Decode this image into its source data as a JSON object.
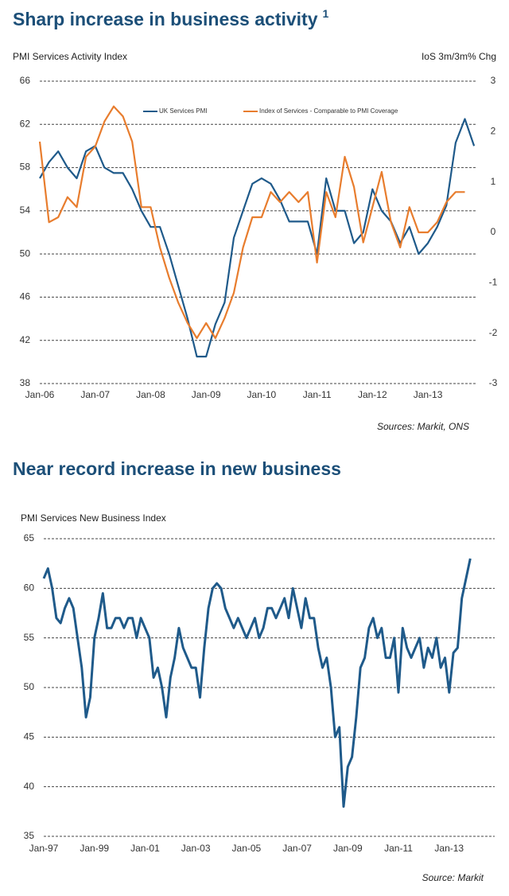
{
  "chart_data": [
    {
      "type": "line",
      "title": "Sharp increase in business activity",
      "title_superscript": "1",
      "ylabel": "PMI Services Activity Index",
      "y2label": "IoS 3m/3m% Chg",
      "source": "Sources: Markit, ONS",
      "categories": [
        "Jan-06",
        null,
        null,
        null,
        null,
        null,
        "Jan-07",
        null,
        null,
        null,
        null,
        null,
        "Jan-08",
        null,
        null,
        null,
        null,
        null,
        "Jan-09",
        null,
        null,
        null,
        null,
        null,
        "Jan-10",
        null,
        null,
        null,
        null,
        null,
        "Jan-11",
        null,
        null,
        null,
        null,
        null,
        "Jan-12",
        null,
        null,
        null,
        null,
        null,
        "Jan-13",
        null,
        null,
        null,
        null,
        null
      ],
      "ylim": [
        38,
        66
      ],
      "yticks": [
        38,
        42,
        46,
        50,
        54,
        58,
        62,
        66
      ],
      "y2lim": [
        -3,
        3
      ],
      "y2ticks": [
        -3,
        -2,
        -1,
        0,
        1,
        2,
        3
      ],
      "grid": true,
      "legend": "top",
      "series": [
        {
          "name": "UK Services PMI",
          "color": "#1f5a8a",
          "values": [
            57,
            58.5,
            59.5,
            58,
            57,
            59.5,
            60,
            58,
            57.5,
            57.5,
            56,
            54,
            52.5,
            52.5,
            50,
            47,
            44,
            40.5,
            40.5,
            43.5,
            45.5,
            51.5,
            54,
            56.5,
            57,
            56.5,
            55,
            53,
            53,
            53,
            50,
            57,
            54,
            54,
            51,
            52,
            56,
            54,
            53,
            51,
            52.5,
            50,
            51,
            52.5,
            54.5,
            60.3,
            62.5,
            60
          ]
        },
        {
          "name": "Index of Services - Comparable to PMI Coverage",
          "color": "#e87d2e",
          "axis": "y2",
          "values": [
            1.8,
            0.2,
            0.3,
            0.7,
            0.5,
            1.5,
            1.7,
            2.2,
            2.5,
            2.3,
            1.8,
            0.5,
            0.5,
            -0.3,
            -0.9,
            -1.4,
            -1.8,
            -2.1,
            -1.8,
            -2.1,
            -1.7,
            -1.2,
            -0.3,
            0.3,
            0.3,
            0.8,
            0.6,
            0.8,
            0.6,
            0.8,
            -0.6,
            0.8,
            0.3,
            1.5,
            0.9,
            -0.2,
            0.5,
            1.2,
            0.2,
            -0.3,
            0.5,
            0.0,
            0.0,
            0.2,
            0.6,
            0.8,
            0.8,
            null
          ]
        }
      ]
    },
    {
      "type": "line",
      "title": "Near record increase in new business",
      "ylabel": "PMI Services New Business Index",
      "source": "Source: Markit",
      "categories": [
        "Jan-97",
        null,
        null,
        null,
        null,
        null,
        null,
        null,
        null,
        null,
        null,
        null,
        "Jan-99",
        null,
        null,
        null,
        null,
        null,
        null,
        null,
        null,
        null,
        null,
        null,
        "Jan-01",
        null,
        null,
        null,
        null,
        null,
        null,
        null,
        null,
        null,
        null,
        null,
        "Jan-03",
        null,
        null,
        null,
        null,
        null,
        null,
        null,
        null,
        null,
        null,
        null,
        "Jan-05",
        null,
        null,
        null,
        null,
        null,
        null,
        null,
        null,
        null,
        null,
        null,
        "Jan-07",
        null,
        null,
        null,
        null,
        null,
        null,
        null,
        null,
        null,
        null,
        null,
        "Jan-09",
        null,
        null,
        null,
        null,
        null,
        null,
        null,
        null,
        null,
        null,
        null,
        "Jan-11",
        null,
        null,
        null,
        null,
        null,
        null,
        null,
        null,
        null,
        null,
        null,
        "Jan-13",
        null,
        null,
        null,
        null,
        null
      ],
      "ylim": [
        35,
        65
      ],
      "yticks": [
        35,
        40,
        45,
        50,
        55,
        60,
        65
      ],
      "grid": true,
      "series": [
        {
          "name": "PMI Services New Business Index",
          "color": "#1f5a8a",
          "values": [
            61,
            62,
            60,
            57,
            56.5,
            58,
            59,
            58,
            55,
            52,
            47,
            49,
            55,
            57,
            59.5,
            56,
            56,
            57,
            57,
            56,
            57,
            57,
            55,
            57,
            56,
            55,
            51,
            52,
            50,
            47,
            51,
            53,
            56,
            54,
            53,
            52,
            52,
            49,
            54,
            58,
            60,
            60.5,
            60,
            58,
            57,
            56,
            57,
            56,
            55,
            56,
            57,
            55,
            56,
            58,
            58,
            57,
            58,
            59,
            57,
            60,
            58,
            56,
            59,
            57,
            57,
            54,
            52,
            53,
            50,
            45,
            46,
            38,
            42,
            43,
            47,
            52,
            53,
            56,
            57,
            55,
            56,
            53,
            53,
            55,
            49.5,
            56,
            54,
            53,
            54,
            55,
            52,
            54,
            53,
            55,
            52,
            53,
            49.5,
            53.5,
            54,
            59,
            61,
            63
          ]
        }
      ]
    }
  ]
}
